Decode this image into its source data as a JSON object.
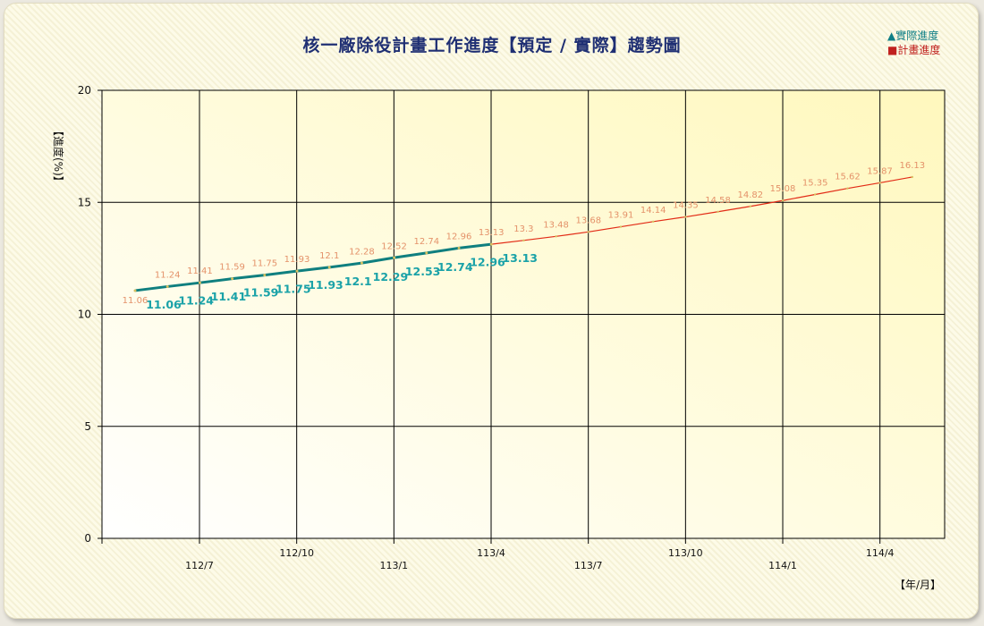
{
  "chart_data": {
    "type": "line",
    "title": "核一廠除役計畫工作進度【預定 / 實際】趨勢圖",
    "ylabel": "【進度(%)】",
    "xlabel": "【年/月】",
    "ylim": [
      0,
      20
    ],
    "yticks": [
      "0",
      "5",
      "10",
      "15",
      "20"
    ],
    "x_tick_labels": [
      "112/7",
      "112/10",
      "113/1",
      "113/4",
      "113/7",
      "113/10",
      "114/1",
      "114/4"
    ],
    "grid": true,
    "legend_position": "top-right",
    "colors": {
      "actual": "#0f7f7f",
      "planned": "#e22b16"
    },
    "series": [
      {
        "name": "實際進度",
        "legend_label": "▲實際進度",
        "values": [
          11.06,
          11.24,
          11.41,
          11.59,
          11.75,
          11.93,
          12.1,
          12.29,
          12.53,
          12.74,
          12.96,
          13.13
        ],
        "labels": [
          "11.06",
          "11.24",
          "11.41",
          "11.59",
          "11.75",
          "11.93",
          "12.1",
          "12.29",
          "12.53",
          "12.74",
          "12.96",
          "13.13"
        ]
      },
      {
        "name": "計畫進度",
        "legend_label": "■計畫進度",
        "values": [
          11.06,
          11.24,
          11.41,
          11.59,
          11.75,
          11.93,
          12.1,
          12.28,
          12.52,
          12.74,
          12.96,
          13.13,
          13.3,
          13.48,
          13.68,
          13.91,
          14.14,
          14.35,
          14.58,
          14.82,
          15.08,
          15.35,
          15.62,
          15.87,
          16.13
        ],
        "labels": [
          "11.06",
          "11.24",
          "11.41",
          "11.59",
          "11.75",
          "11.93",
          "12.1",
          "12.28",
          "12.52",
          "12.74",
          "12.96",
          "13.13",
          "13.3",
          "13.48",
          "13.68",
          "13.91",
          "14.14",
          "14.35",
          "14.58",
          "14.82",
          "15.08",
          "15.35",
          "15.62",
          "15.87",
          "16.13"
        ]
      }
    ]
  }
}
